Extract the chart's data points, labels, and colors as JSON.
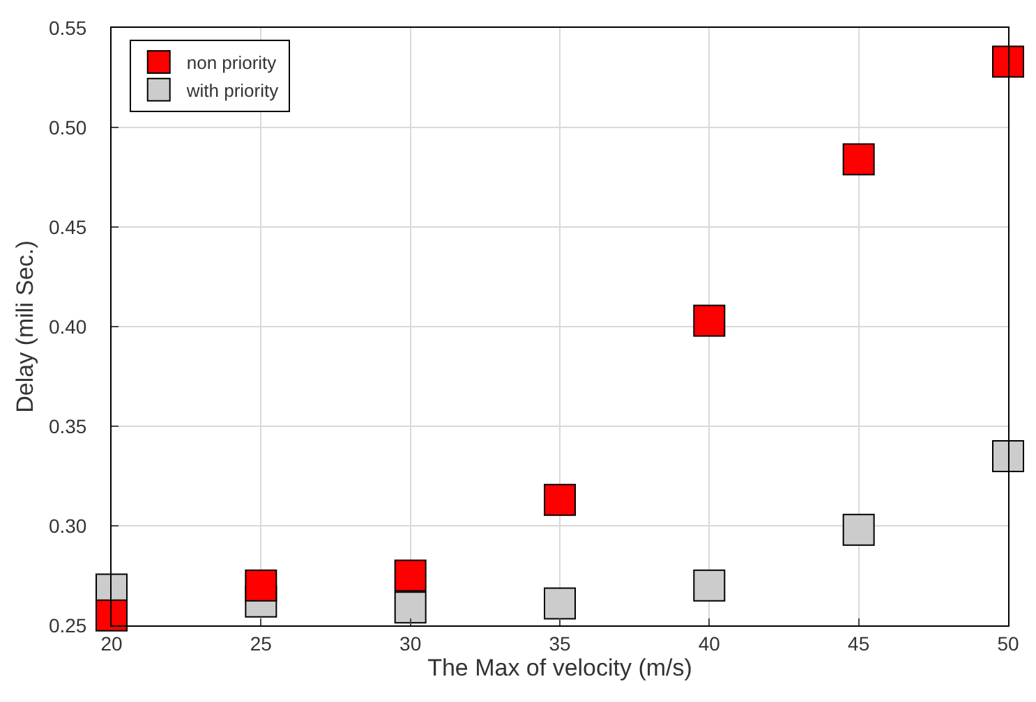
{
  "chart_data": {
    "type": "scatter",
    "xlabel": "The Max of velocity (m/s)",
    "ylabel": "Delay (mili Sec.)",
    "x": [
      20,
      25,
      30,
      35,
      40,
      45,
      50
    ],
    "series": [
      {
        "name": "with priority",
        "color": "#cccccc",
        "values": [
          0.268,
          0.262,
          0.259,
          0.261,
          0.27,
          0.298,
          0.335
        ]
      },
      {
        "name": "non priority",
        "color": "#ff0000",
        "values": [
          0.255,
          0.27,
          0.275,
          0.313,
          0.403,
          0.484,
          0.533
        ]
      }
    ],
    "xlim": [
      20,
      50
    ],
    "xticks": [
      20,
      25,
      30,
      35,
      40,
      45,
      50
    ],
    "ylim": [
      0.25,
      0.55
    ],
    "yticks": [
      {
        "value": 0.25,
        "label": "0.25"
      },
      {
        "value": 0.3,
        "label": "0.30"
      },
      {
        "value": 0.35,
        "label": "0.35"
      },
      {
        "value": 0.4,
        "label": "0.40"
      },
      {
        "value": 0.45,
        "label": "0.45"
      },
      {
        "value": 0.5,
        "label": "0.50"
      },
      {
        "value": 0.55,
        "label": "0.55"
      }
    ],
    "grid": true,
    "legend": "top left",
    "marker": "square"
  }
}
